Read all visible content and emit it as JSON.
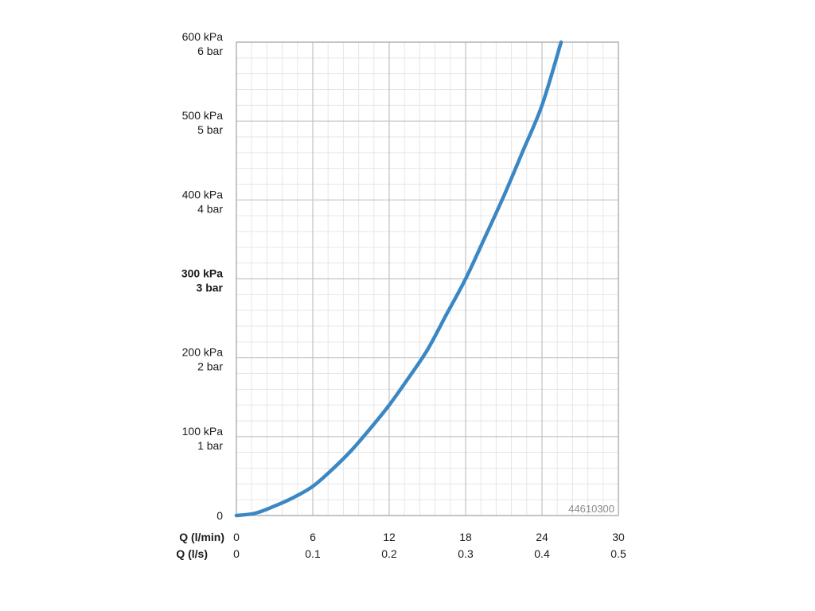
{
  "chart_data": {
    "type": "line",
    "product_code": "44610300",
    "x_axis": {
      "label_primary": "Q (l/min)",
      "label_secondary": "Q (l/s)",
      "range": [
        0,
        30
      ],
      "ticks": [
        {
          "value": 0,
          "primary": "0",
          "secondary": "0"
        },
        {
          "value": 6,
          "primary": "6",
          "secondary": "0.1"
        },
        {
          "value": 12,
          "primary": "12",
          "secondary": "0.2"
        },
        {
          "value": 18,
          "primary": "18",
          "secondary": "0.3"
        },
        {
          "value": 24,
          "primary": "24",
          "secondary": "0.4"
        },
        {
          "value": 30,
          "primary": "30",
          "secondary": "0.5"
        }
      ]
    },
    "y_axis": {
      "range": [
        0,
        600
      ],
      "unit": "kPa",
      "ticks": [
        {
          "value": 0,
          "line1": "0",
          "line2": "",
          "bold": false
        },
        {
          "value": 100,
          "line1": "100 kPa",
          "line2": "1 bar",
          "bold": false
        },
        {
          "value": 200,
          "line1": "200 kPa",
          "line2": "2 bar",
          "bold": false
        },
        {
          "value": 300,
          "line1": "300 kPa",
          "line2": "3 bar",
          "bold": true
        },
        {
          "value": 400,
          "line1": "400 kPa",
          "line2": "4 bar",
          "bold": false
        },
        {
          "value": 500,
          "line1": "500 kPa",
          "line2": "5 bar",
          "bold": false
        },
        {
          "value": 600,
          "line1": "600 kPa",
          "line2": "6 bar",
          "bold": false
        }
      ]
    },
    "grid": true,
    "minor_grid_divisions": 5,
    "series": [
      {
        "color": "#3a87c4",
        "x": [
          0,
          1.5,
          3,
          4.5,
          6,
          7.5,
          9,
          10.5,
          12,
          13.5,
          15,
          16.5,
          18,
          19.5,
          21,
          22.5,
          24,
          25.5
        ],
        "y": [
          0,
          3,
          12,
          23,
          37,
          58,
          82,
          110,
          140,
          174,
          210,
          255,
          300,
          352,
          405,
          462,
          520,
          600
        ]
      }
    ]
  }
}
